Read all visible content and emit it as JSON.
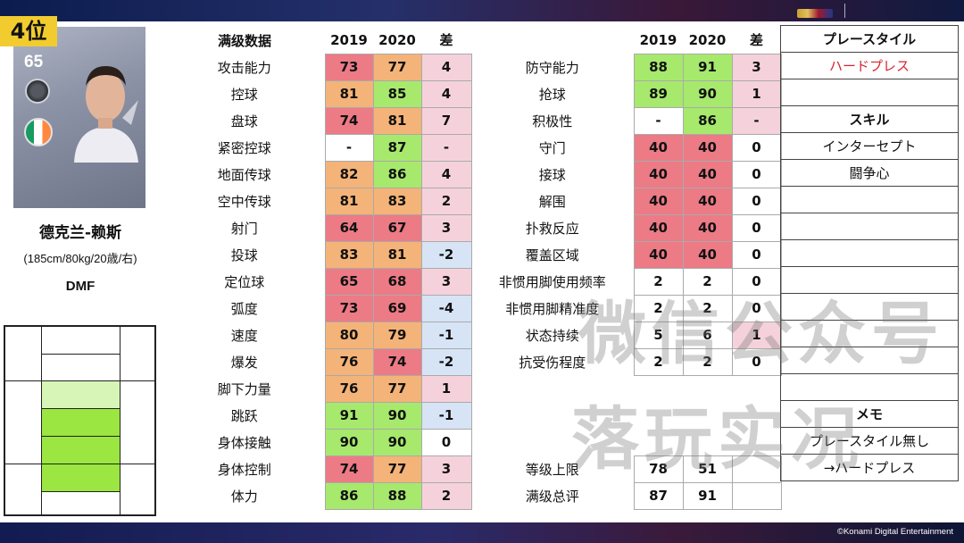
{
  "rank": "4位",
  "card": {
    "overall": "65"
  },
  "player": {
    "name": "德克兰-赖斯",
    "info": "(185cm/80kg/20歳/右)",
    "position": "DMF"
  },
  "colors": {
    "red": "#ec7b86",
    "orange": "#f4b378",
    "green": "#a6e96c",
    "pink": "#f5d2db",
    "blue": "#d6e4f5",
    "rank_bg": "#f2cc2e"
  },
  "left_table": {
    "headers": [
      "满级数据",
      "2019",
      "2020",
      "差"
    ],
    "rows": [
      {
        "label": "攻击能力",
        "v2019": "73",
        "v2020": "77",
        "diff": "4"
      },
      {
        "label": "控球",
        "v2019": "81",
        "v2020": "85",
        "diff": "4"
      },
      {
        "label": "盘球",
        "v2019": "74",
        "v2020": "81",
        "diff": "7"
      },
      {
        "label": "紧密控球",
        "v2019": "-",
        "v2020": "87",
        "diff": "-"
      },
      {
        "label": "地面传球",
        "v2019": "82",
        "v2020": "86",
        "diff": "4"
      },
      {
        "label": "空中传球",
        "v2019": "81",
        "v2020": "83",
        "diff": "2"
      },
      {
        "label": "射门",
        "v2019": "64",
        "v2020": "67",
        "diff": "3"
      },
      {
        "label": "投球",
        "v2019": "83",
        "v2020": "81",
        "diff": "-2"
      },
      {
        "label": "定位球",
        "v2019": "65",
        "v2020": "68",
        "diff": "3"
      },
      {
        "label": "弧度",
        "v2019": "73",
        "v2020": "69",
        "diff": "-4"
      },
      {
        "label": "速度",
        "v2019": "80",
        "v2020": "79",
        "diff": "-1"
      },
      {
        "label": "爆发",
        "v2019": "76",
        "v2020": "74",
        "diff": "-2"
      },
      {
        "label": "脚下力量",
        "v2019": "76",
        "v2020": "77",
        "diff": "1"
      },
      {
        "label": "跳跃",
        "v2019": "91",
        "v2020": "90",
        "diff": "-1"
      },
      {
        "label": "身体接触",
        "v2019": "90",
        "v2020": "90",
        "diff": "0"
      },
      {
        "label": "身体控制",
        "v2019": "74",
        "v2020": "77",
        "diff": "3"
      },
      {
        "label": "体力",
        "v2019": "86",
        "v2020": "88",
        "diff": "2"
      }
    ]
  },
  "mid_table": {
    "headers": [
      "",
      "2019",
      "2020",
      "差"
    ],
    "rows": [
      {
        "label": "防守能力",
        "v2019": "88",
        "v2020": "91",
        "diff": "3"
      },
      {
        "label": "抢球",
        "v2019": "89",
        "v2020": "90",
        "diff": "1"
      },
      {
        "label": "积极性",
        "v2019": "-",
        "v2020": "86",
        "diff": "-"
      },
      {
        "label": "守门",
        "v2019": "40",
        "v2020": "40",
        "diff": "0"
      },
      {
        "label": "接球",
        "v2019": "40",
        "v2020": "40",
        "diff": "0"
      },
      {
        "label": "解围",
        "v2019": "40",
        "v2020": "40",
        "diff": "0"
      },
      {
        "label": "扑救反应",
        "v2019": "40",
        "v2020": "40",
        "diff": "0"
      },
      {
        "label": "覆盖区域",
        "v2019": "40",
        "v2020": "40",
        "diff": "0"
      },
      {
        "label": "非惯用脚使用频率",
        "v2019": "2",
        "v2020": "2",
        "diff": "0"
      },
      {
        "label": "非惯用脚精准度",
        "v2019": "2",
        "v2020": "2",
        "diff": "0"
      },
      {
        "label": "状态持续",
        "v2019": "5",
        "v2020": "6",
        "diff": "1"
      },
      {
        "label": "抗受伤程度",
        "v2019": "2",
        "v2020": "2",
        "diff": "0"
      },
      {
        "label": "",
        "v2019": "",
        "v2020": "",
        "diff": ""
      },
      {
        "label": "",
        "v2019": "",
        "v2020": "",
        "diff": ""
      },
      {
        "label": "",
        "v2019": "",
        "v2020": "",
        "diff": ""
      },
      {
        "label": "等级上限",
        "v2019": "78",
        "v2020": "51",
        "diff": ""
      },
      {
        "label": "满级总评",
        "v2019": "87",
        "v2020": "91",
        "diff": ""
      }
    ]
  },
  "right_col": {
    "playstyle_header": "プレースタイル",
    "playstyle": "ハードプレス",
    "skill_header": "スキル",
    "skills": [
      "インターセプト",
      "闘争心"
    ],
    "memo_header": "メモ",
    "memo": [
      "プレースタイル無し",
      "→ハードプレス"
    ]
  },
  "watermark": {
    "line1": "微信公众号",
    "line2": "落玩实况"
  },
  "copyright": "©Konami Digital Entertainment"
}
